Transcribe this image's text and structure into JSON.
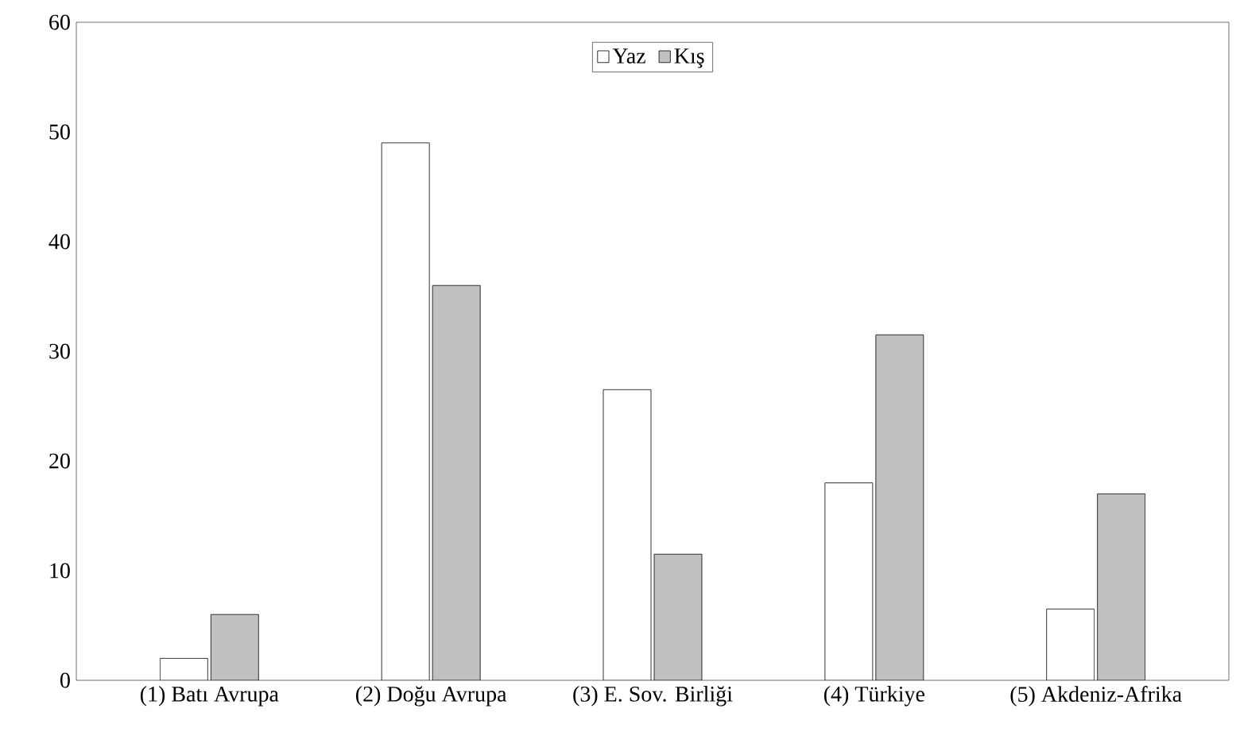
{
  "chart_data": {
    "type": "bar",
    "categories": [
      "(1) Batı Avrupa",
      "(2) Doğu Avrupa",
      "(3) E. Sov. Birliği",
      "(4) Türkiye",
      "(5) Akdeniz-Afrika"
    ],
    "series": [
      {
        "name": "Yaz",
        "color": "#ffffff",
        "values": [
          2,
          49,
          26.5,
          18,
          6.5
        ]
      },
      {
        "name": "Kış",
        "color": "#c0c0c0",
        "values": [
          6,
          36,
          11.5,
          31.5,
          17
        ]
      }
    ],
    "ylim": [
      0,
      60
    ],
    "yticks": [
      0,
      10,
      20,
      30,
      40,
      50,
      60
    ],
    "grid": false,
    "legend": "top"
  }
}
